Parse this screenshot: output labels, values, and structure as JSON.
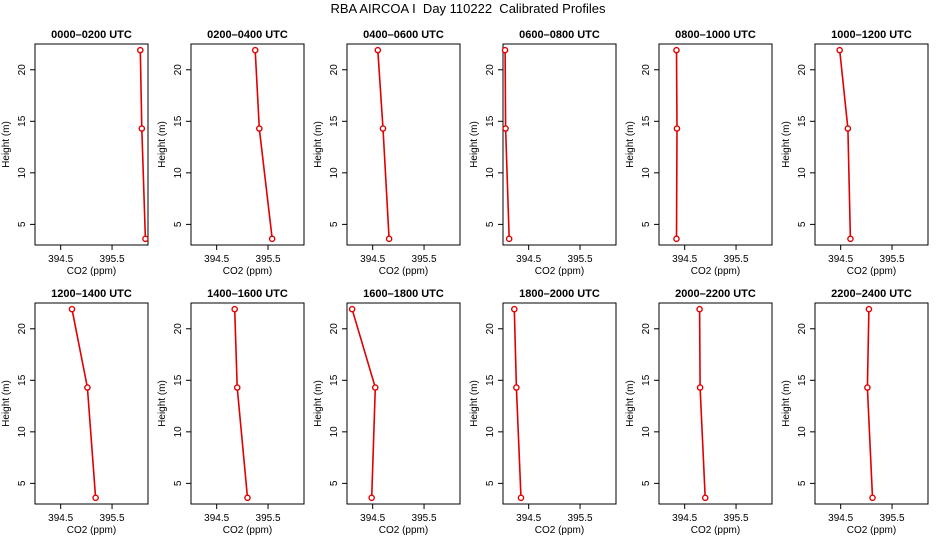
{
  "title": "RBA AIRCOA I  Day 110222  Calibrated Profiles",
  "colors": {
    "line": "#e00000",
    "frame": "#000000",
    "background": "#ffffff"
  },
  "chart_data": [
    {
      "type": "line",
      "title": "0000–0200 UTC",
      "xlabel": "CO2 (ppm)",
      "ylabel": "Height (m)",
      "xlim": [
        394.0,
        396.2
      ],
      "ylim": [
        3,
        22.5
      ],
      "xticks": [
        "394.5",
        "395.5"
      ],
      "yticks": [
        "5",
        "10",
        "15",
        "20"
      ],
      "grid": false,
      "series": [
        {
          "x": [
            396.05,
            396.08,
            396.15
          ],
          "y": [
            21.9,
            14.3,
            3.6
          ]
        }
      ]
    },
    {
      "type": "line",
      "title": "0200–0400 UTC",
      "xlabel": "CO2 (ppm)",
      "ylabel": "Height (m)",
      "xlim": [
        394.0,
        396.2
      ],
      "ylim": [
        3,
        22.5
      ],
      "xticks": [
        "394.5",
        "395.5"
      ],
      "yticks": [
        "5",
        "10",
        "15",
        "20"
      ],
      "grid": false,
      "series": [
        {
          "x": [
            395.25,
            395.33,
            395.58
          ],
          "y": [
            21.9,
            14.3,
            3.6
          ]
        }
      ]
    },
    {
      "type": "line",
      "title": "0400–0600 UTC",
      "xlabel": "CO2 (ppm)",
      "ylabel": "Height (m)",
      "xlim": [
        394.0,
        396.2
      ],
      "ylim": [
        3,
        22.5
      ],
      "xticks": [
        "394.5",
        "395.5"
      ],
      "yticks": [
        "5",
        "10",
        "15",
        "20"
      ],
      "grid": false,
      "series": [
        {
          "x": [
            394.6,
            394.7,
            394.82
          ],
          "y": [
            21.9,
            14.3,
            3.6
          ]
        }
      ]
    },
    {
      "type": "line",
      "title": "0600–0800 UTC",
      "xlabel": "CO2 (ppm)",
      "ylabel": "Height (m)",
      "xlim": [
        394.0,
        396.2
      ],
      "ylim": [
        3,
        22.5
      ],
      "xticks": [
        "394.5",
        "395.5"
      ],
      "yticks": [
        "5",
        "10",
        "15",
        "20"
      ],
      "grid": false,
      "series": [
        {
          "x": [
            394.04,
            394.05,
            394.12
          ],
          "y": [
            21.9,
            14.3,
            3.6
          ]
        }
      ]
    },
    {
      "type": "line",
      "title": "0800–1000 UTC",
      "xlabel": "CO2 (ppm)",
      "ylabel": "Height (m)",
      "xlim": [
        394.0,
        396.2
      ],
      "ylim": [
        3,
        22.5
      ],
      "xticks": [
        "394.5",
        "395.5"
      ],
      "yticks": [
        "5",
        "10",
        "15",
        "20"
      ],
      "grid": false,
      "series": [
        {
          "x": [
            394.34,
            394.35,
            394.34
          ],
          "y": [
            21.9,
            14.3,
            3.6
          ]
        }
      ]
    },
    {
      "type": "line",
      "title": "1000–1200 UTC",
      "xlabel": "CO2 (ppm)",
      "ylabel": "Height (m)",
      "xlim": [
        394.0,
        396.2
      ],
      "ylim": [
        3,
        22.5
      ],
      "xticks": [
        "394.5",
        "395.5"
      ],
      "yticks": [
        "5",
        "10",
        "15",
        "20"
      ],
      "grid": false,
      "series": [
        {
          "x": [
            394.48,
            394.64,
            394.69
          ],
          "y": [
            21.9,
            14.3,
            3.6
          ]
        }
      ]
    },
    {
      "type": "line",
      "title": "1200–1400 UTC",
      "xlabel": "CO2 (ppm)",
      "ylabel": "Height (m)",
      "xlim": [
        394.0,
        396.2
      ],
      "ylim": [
        3,
        22.5
      ],
      "xticks": [
        "394.5",
        "395.5"
      ],
      "yticks": [
        "5",
        "10",
        "15",
        "20"
      ],
      "grid": false,
      "series": [
        {
          "x": [
            394.72,
            395.02,
            395.18
          ],
          "y": [
            21.9,
            14.3,
            3.6
          ]
        }
      ]
    },
    {
      "type": "line",
      "title": "1400–1600 UTC",
      "xlabel": "CO2 (ppm)",
      "ylabel": "Height (m)",
      "xlim": [
        394.0,
        396.2
      ],
      "ylim": [
        3,
        22.5
      ],
      "xticks": [
        "394.5",
        "395.5"
      ],
      "yticks": [
        "5",
        "10",
        "15",
        "20"
      ],
      "grid": false,
      "series": [
        {
          "x": [
            394.85,
            394.9,
            395.1
          ],
          "y": [
            21.9,
            14.3,
            3.6
          ]
        }
      ]
    },
    {
      "type": "line",
      "title": "1600–1800 UTC",
      "xlabel": "CO2 (ppm)",
      "ylabel": "Height (m)",
      "xlim": [
        394.0,
        396.2
      ],
      "ylim": [
        3,
        22.5
      ],
      "xticks": [
        "394.5",
        "395.5"
      ],
      "yticks": [
        "5",
        "10",
        "15",
        "20"
      ],
      "grid": false,
      "series": [
        {
          "x": [
            394.1,
            394.55,
            394.48
          ],
          "y": [
            21.9,
            14.3,
            3.6
          ]
        }
      ]
    },
    {
      "type": "line",
      "title": "1800–2000 UTC",
      "xlabel": "CO2 (ppm)",
      "ylabel": "Height (m)",
      "xlim": [
        394.0,
        396.2
      ],
      "ylim": [
        3,
        22.5
      ],
      "xticks": [
        "394.5",
        "395.5"
      ],
      "yticks": [
        "5",
        "10",
        "15",
        "20"
      ],
      "grid": false,
      "series": [
        {
          "x": [
            394.22,
            394.26,
            394.35
          ],
          "y": [
            21.9,
            14.3,
            3.6
          ]
        }
      ]
    },
    {
      "type": "line",
      "title": "2000–2200 UTC",
      "xlabel": "CO2 (ppm)",
      "ylabel": "Height (m)",
      "xlim": [
        394.0,
        396.2
      ],
      "ylim": [
        3,
        22.5
      ],
      "xticks": [
        "394.5",
        "395.5"
      ],
      "yticks": [
        "5",
        "10",
        "15",
        "20"
      ],
      "grid": false,
      "series": [
        {
          "x": [
            394.79,
            394.8,
            394.9
          ],
          "y": [
            21.9,
            14.3,
            3.6
          ]
        }
      ]
    },
    {
      "type": "line",
      "title": "2200–2400 UTC",
      "xlabel": "CO2 (ppm)",
      "ylabel": "Height (m)",
      "xlim": [
        394.0,
        396.2
      ],
      "ylim": [
        3,
        22.5
      ],
      "xticks": [
        "394.5",
        "395.5"
      ],
      "yticks": [
        "5",
        "10",
        "15",
        "20"
      ],
      "grid": false,
      "series": [
        {
          "x": [
            395.05,
            395.02,
            395.12
          ],
          "y": [
            21.9,
            14.3,
            3.6
          ]
        }
      ]
    }
  ]
}
